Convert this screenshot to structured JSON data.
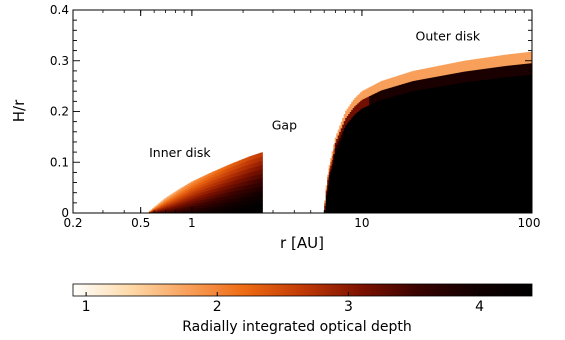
{
  "chart_data": {
    "type": "heatmap",
    "title": "",
    "xlabel": "r [AU]",
    "ylabel": "H/r",
    "x_scale": "log",
    "xlim": [
      0.2,
      100
    ],
    "ylim": [
      0,
      0.4
    ],
    "x_ticks": [
      0.2,
      0.5,
      1,
      10,
      100
    ],
    "x_tick_labels": [
      "0.2",
      "0.5",
      "1",
      "10",
      "100"
    ],
    "y_ticks": [
      0,
      0.1,
      0.2,
      0.3,
      0.4
    ],
    "y_tick_labels": [
      "0",
      "0.1",
      "0.2",
      "0.3",
      "0.4"
    ],
    "grid": false,
    "annotations": [
      {
        "text": "Inner disk",
        "x": 0.85,
        "y": 0.11
      },
      {
        "text": "Gap",
        "x": 3.5,
        "y": 0.165
      },
      {
        "text": "Outer disk",
        "x": 32,
        "y": 0.34
      }
    ],
    "regions": [
      {
        "name": "inner disk",
        "r_min": 0.55,
        "r_max": 2.6,
        "surface": [
          [
            0.55,
            0.0
          ],
          [
            0.6,
            0.012
          ],
          [
            0.7,
            0.03
          ],
          [
            0.85,
            0.048
          ],
          [
            1.0,
            0.062
          ],
          [
            1.3,
            0.08
          ],
          [
            1.7,
            0.097
          ],
          [
            2.2,
            0.112
          ],
          [
            2.6,
            0.12
          ]
        ]
      },
      {
        "name": "outer disk",
        "r_min": 6.0,
        "r_max": 100,
        "surface": [
          [
            6.0,
            0.0
          ],
          [
            6.1,
            0.04
          ],
          [
            6.4,
            0.09
          ],
          [
            7.0,
            0.15
          ],
          [
            8.0,
            0.2
          ],
          [
            9.0,
            0.225
          ],
          [
            10.0,
            0.24
          ],
          [
            13.0,
            0.26
          ],
          [
            20.0,
            0.28
          ],
          [
            40.0,
            0.3
          ],
          [
            70.0,
            0.312
          ],
          [
            100.0,
            0.318
          ]
        ]
      }
    ],
    "colorbar": {
      "label": "Radially integrated optical depth",
      "range": [
        0.9,
        4.4
      ],
      "ticks": [
        1,
        2,
        3,
        4
      ],
      "tick_labels": [
        "1",
        "2",
        "3",
        "4"
      ],
      "stops": [
        "#ffffff",
        "#fdd9a8",
        "#f8a05b",
        "#ee6a12",
        "#c13a06",
        "#7e1200",
        "#3a0300",
        "#120000",
        "#000000"
      ]
    }
  }
}
